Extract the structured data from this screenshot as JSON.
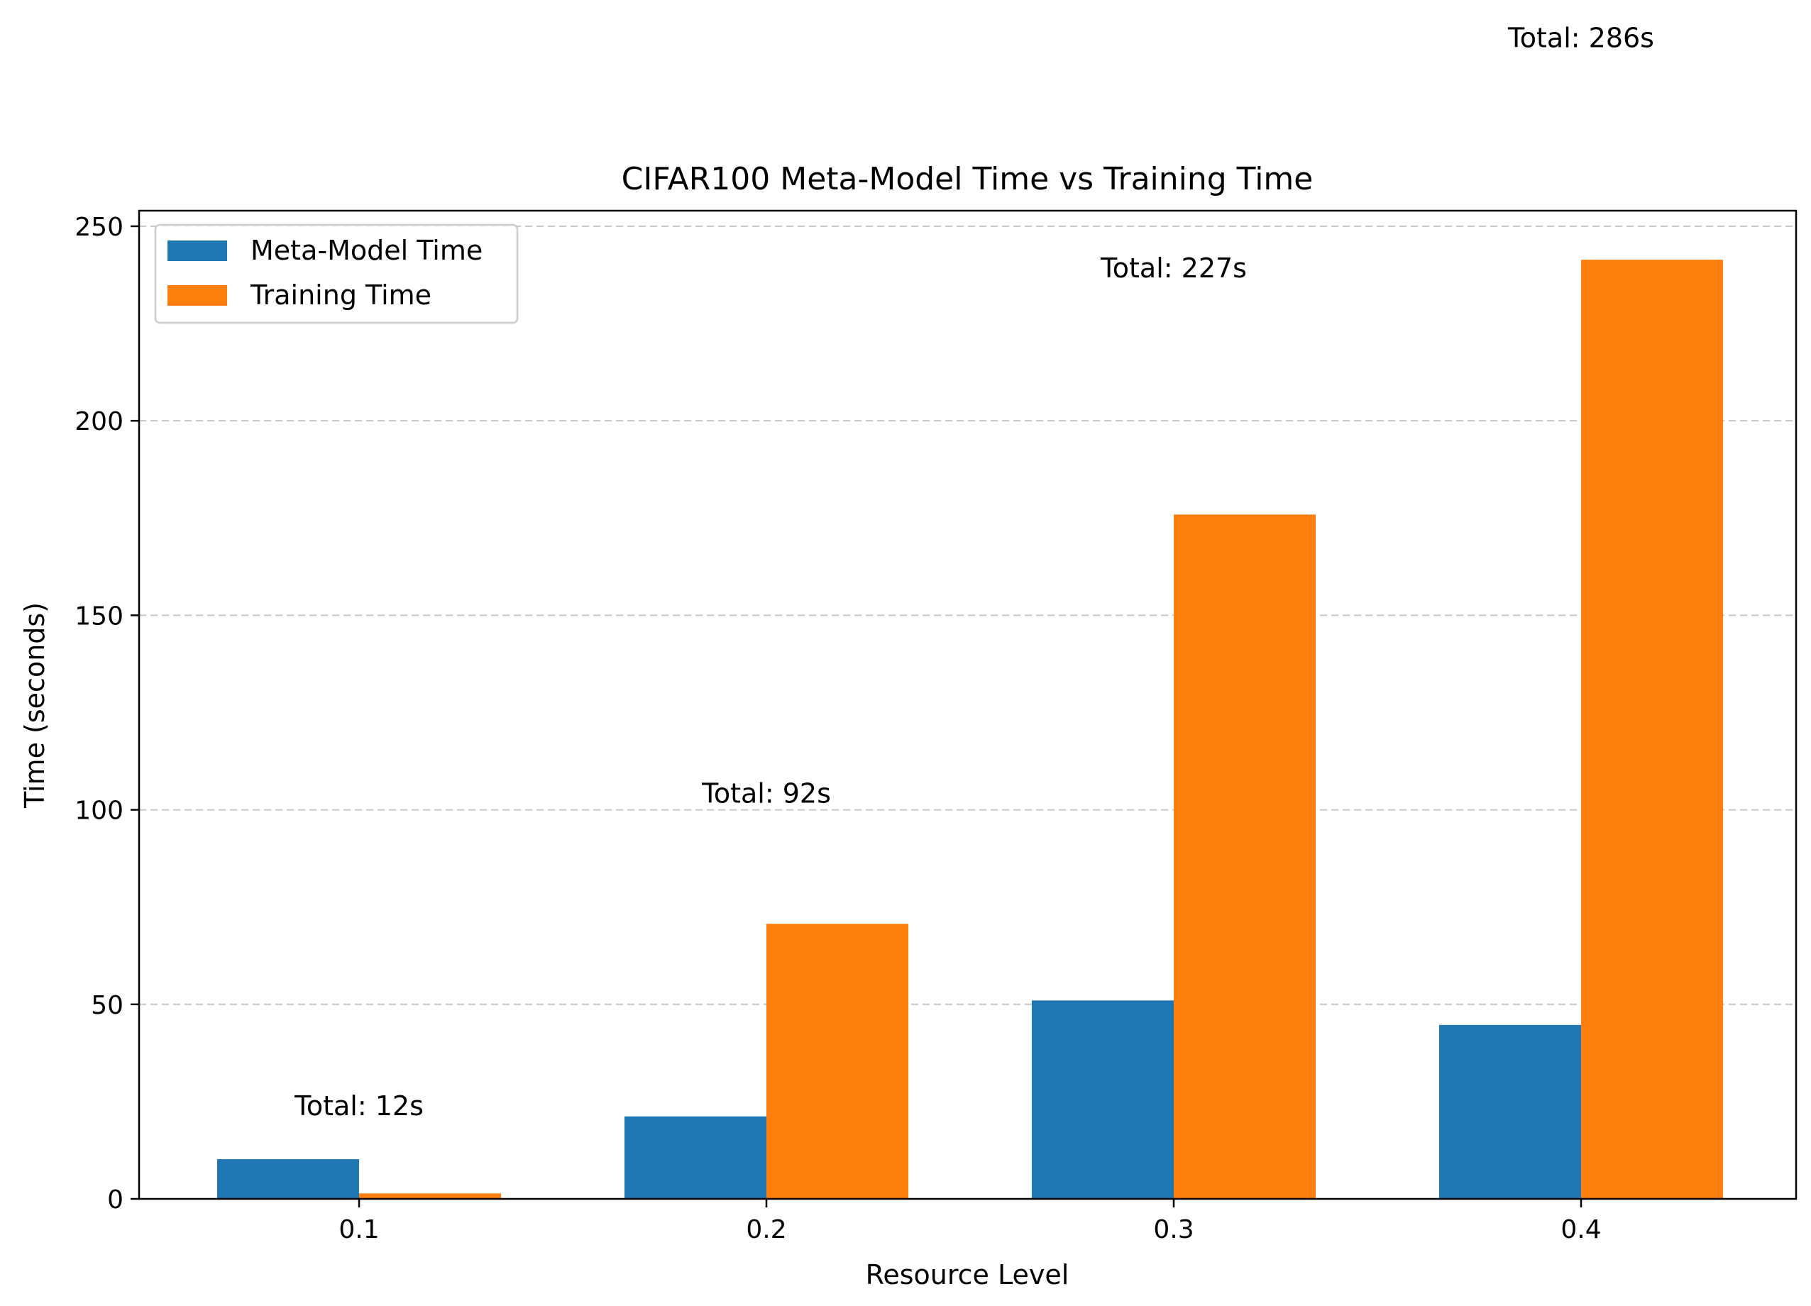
{
  "chart_data": {
    "type": "bar",
    "title": "CIFAR100 Meta-Model Time vs Training Time",
    "xlabel": "Resource Level",
    "ylabel": "Time (seconds)",
    "categories": [
      "0.1",
      "0.2",
      "0.3",
      "0.4"
    ],
    "ylim": [
      0,
      254
    ],
    "yticks": [
      "0",
      "50",
      "100",
      "150",
      "200",
      "250"
    ],
    "grid": "horizontal dashed",
    "legend_position": "top-left",
    "series": [
      {
        "name": "Meta-Model Time",
        "color": "#1f77b4",
        "values": [
          10.2,
          21.2,
          51.0,
          44.7
        ]
      },
      {
        "name": "Training Time",
        "color": "#ff7f0e",
        "values": [
          1.4,
          70.7,
          175.9,
          241.4
        ]
      }
    ],
    "annotations": [
      {
        "text": "Total: 12s",
        "category": "0.1",
        "y": 21.5
      },
      {
        "text": "Total: 92s",
        "category": "0.2",
        "y": 101.8
      },
      {
        "text": "Total: 227s",
        "category": "0.3",
        "y": 236.9
      },
      {
        "text": "Total: 286s",
        "category": "0.4",
        "y": 296
      }
    ]
  }
}
